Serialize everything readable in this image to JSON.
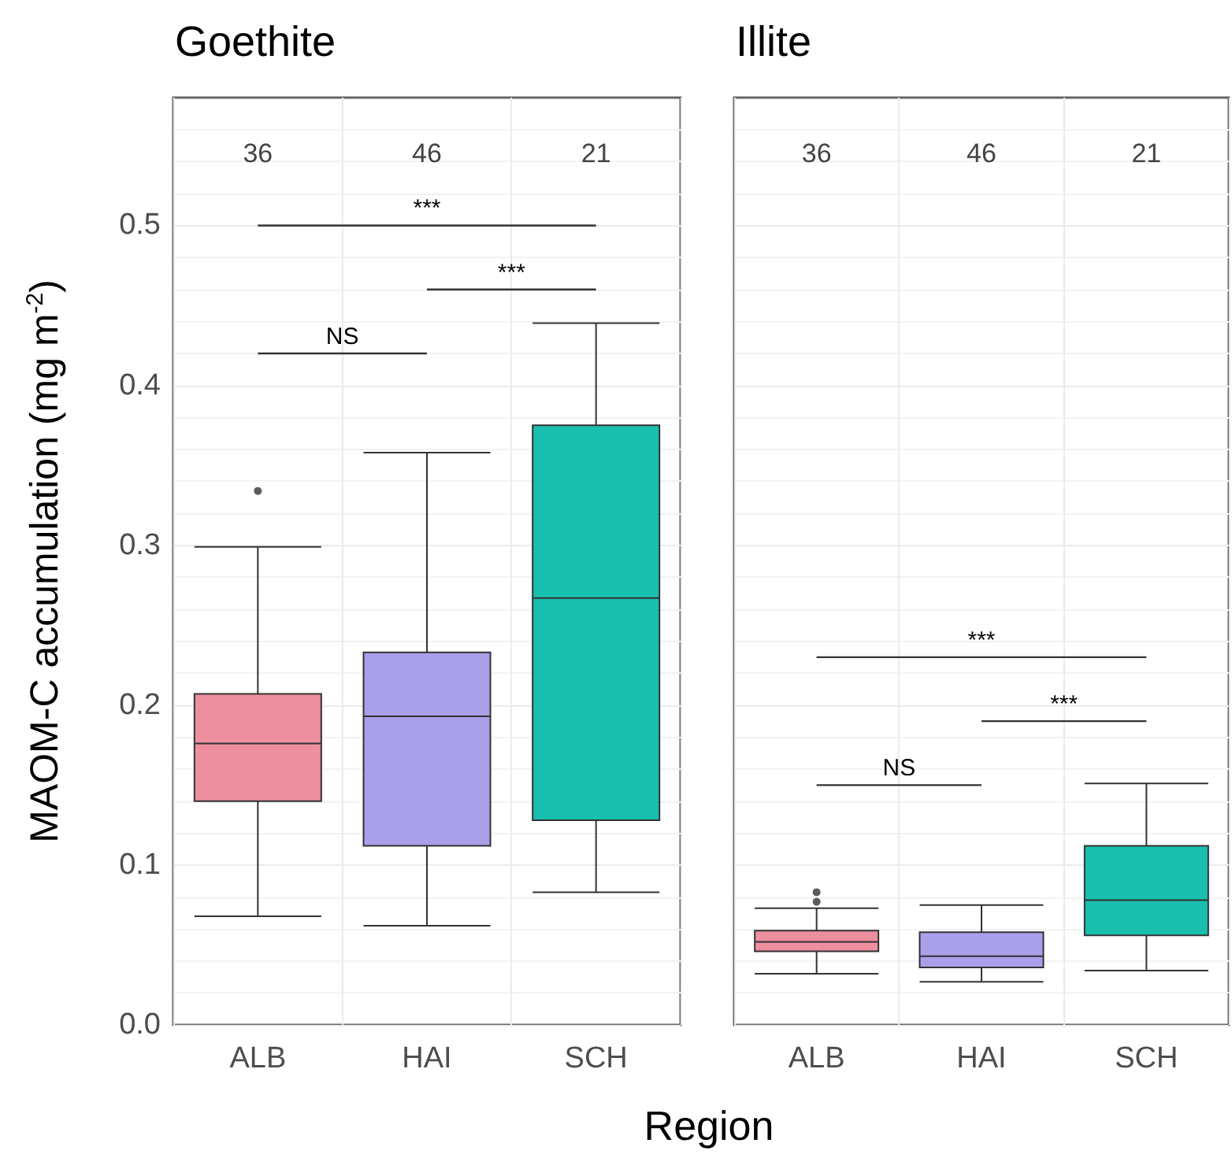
{
  "chart_data": [
    {
      "type": "box",
      "title": "Goethite",
      "xlabel": "Region",
      "ylabel": "MAOM-C accumulation (mg m$^{-2}$)",
      "categories": [
        "ALB",
        "HAI",
        "SCH"
      ],
      "colors": [
        "#ee8fa0",
        "#aa9fe9",
        "#19bfae"
      ],
      "boxes": [
        {
          "low": 0.068,
          "q1": 0.14,
          "median": 0.176,
          "q3": 0.207,
          "high": 0.299,
          "outliers": [
            0.334
          ]
        },
        {
          "low": 0.062,
          "q1": 0.112,
          "median": 0.193,
          "q3": 0.233,
          "high": 0.358
        },
        {
          "low": 0.083,
          "q1": 0.128,
          "median": 0.267,
          "q3": 0.375,
          "high": 0.439
        }
      ],
      "ylim": [
        0,
        0.58
      ],
      "yticks": [
        {
          "value": 0,
          "label": "0.0"
        },
        0.1,
        0.2,
        0.3,
        0.4,
        0.5
      ],
      "grid": true,
      "annotations": [
        "36",
        "46",
        "21",
        "NS",
        "***",
        "***"
      ]
    },
    {
      "type": "box",
      "title": "Illite",
      "categories": [
        "ALB",
        "HAI",
        "SCH"
      ],
      "colors": [
        "#ee8fa0",
        "#aa9fe9",
        "#19bfae"
      ],
      "boxes": [
        {
          "low": 0.032,
          "q1": 0.046,
          "median": 0.052,
          "q3": 0.059,
          "high": 0.073,
          "outliers": [
            0.077,
            0.083
          ]
        },
        {
          "low": 0.027,
          "q1": 0.036,
          "median": 0.043,
          "q3": 0.058,
          "high": 0.075
        },
        {
          "low": 0.034,
          "q1": 0.056,
          "median": 0.078,
          "q3": 0.112,
          "high": 0.151
        }
      ],
      "ylim": [
        0,
        0.58
      ],
      "yticks": [
        0,
        0.1,
        0.2,
        0.3,
        0.4,
        0.5
      ],
      "grid": true,
      "tick_labels": "x",
      "annotations": [
        "36",
        "46",
        "21",
        "NS",
        "***",
        "***"
      ]
    }
  ]
}
